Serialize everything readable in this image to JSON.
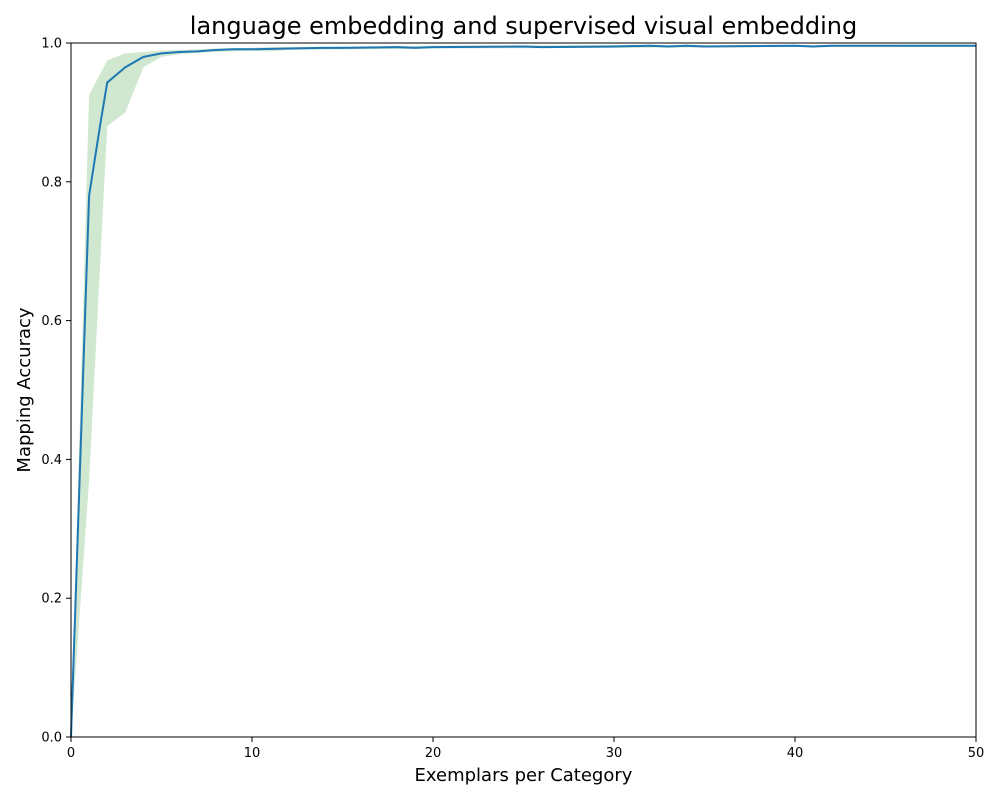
{
  "chart_data": {
    "type": "line",
    "title": "language embedding and supervised visual embedding",
    "xlabel": "Exemplars per Category",
    "ylabel": "Mapping Accuracy",
    "xlim": [
      0,
      50
    ],
    "ylim": [
      0.0,
      1.0
    ],
    "x_ticks": [
      0,
      10,
      20,
      30,
      40,
      50
    ],
    "y_ticks": [
      0.0,
      0.2,
      0.4,
      0.6,
      0.8,
      1.0
    ],
    "x_tick_labels": [
      "0",
      "10",
      "20",
      "30",
      "40",
      "50"
    ],
    "y_tick_labels": [
      "0.0",
      "0.2",
      "0.4",
      "0.6",
      "0.8",
      "1.0"
    ],
    "grid": false,
    "series": [
      {
        "color": "#1f77b4",
        "x": [
          0,
          1,
          1.6,
          2,
          3,
          4,
          5,
          6,
          7,
          8,
          9,
          10,
          12,
          14,
          15,
          18,
          19,
          20,
          25,
          26,
          30,
          32,
          33,
          34,
          35,
          40,
          41,
          42,
          45,
          50
        ],
        "y": [
          0.0,
          0.78,
          0.88,
          0.943,
          0.965,
          0.98,
          0.985,
          0.987,
          0.988,
          0.99,
          0.991,
          0.991,
          0.992,
          0.993,
          0.993,
          0.994,
          0.993,
          0.994,
          0.995,
          0.994,
          0.995,
          0.996,
          0.995,
          0.996,
          0.995,
          0.996,
          0.995,
          0.996,
          0.996,
          0.996
        ]
      }
    ],
    "band": {
      "color": "#a8d5a8",
      "opacity": 0.55,
      "x": [
        0,
        1,
        2,
        3,
        4,
        5,
        6,
        7,
        8,
        9,
        10,
        11,
        12,
        15,
        20,
        30,
        40,
        50
      ],
      "lower": [
        0.0,
        0.37,
        0.88,
        0.9,
        0.965,
        0.98,
        0.984,
        0.986,
        0.987,
        0.988,
        0.989,
        0.988,
        0.99,
        0.991,
        0.992,
        0.993,
        0.994,
        0.994
      ],
      "upper": [
        0.0,
        0.925,
        0.975,
        0.985,
        0.987,
        0.989,
        0.99,
        0.991,
        0.992,
        0.993,
        0.993,
        0.994,
        0.994,
        0.995,
        0.996,
        0.997,
        0.997,
        0.998
      ]
    }
  }
}
